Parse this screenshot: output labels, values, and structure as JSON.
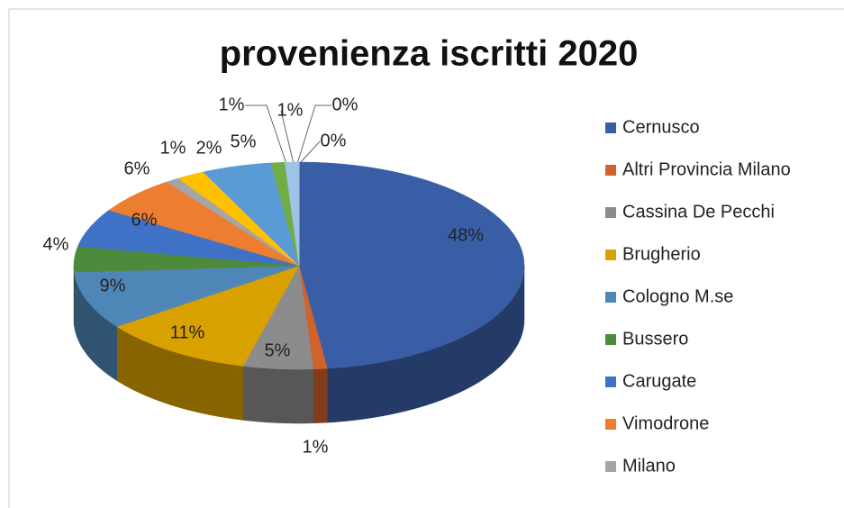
{
  "chart_data": {
    "type": "pie",
    "title": "provenienza iscritti 2020",
    "categories": [
      "Cernusco",
      "Altri Provincia Milano",
      "Cassina De Pecchi",
      "Brugherio",
      "Cologno M.se",
      "Bussero",
      "Carugate",
      "Vimodrone",
      "Milano",
      null,
      null,
      null,
      null,
      null,
      null
    ],
    "values": [
      48,
      1,
      5,
      11,
      9,
      4,
      6,
      6,
      1,
      2,
      5,
      1,
      1,
      0,
      0
    ],
    "value_labels": [
      "48%",
      "1%",
      "5%",
      "11%",
      "9%",
      "4%",
      "6%",
      "6%",
      "1%",
      "2%",
      "5%",
      "1%",
      "1%",
      "0%",
      "0%"
    ],
    "colors": [
      "#3a5ea6",
      "#d0632b",
      "#8c8c8c",
      "#d9a100",
      "#4f86b8",
      "#4e8a3c",
      "#3f72c6",
      "#ed7d31",
      "#a5a5a5",
      "#ffc000",
      "#5b9bd5",
      "#70ad47",
      "#9dc3e6",
      "#a9b7e0",
      "#b4c0e8"
    ],
    "legend": "right"
  }
}
